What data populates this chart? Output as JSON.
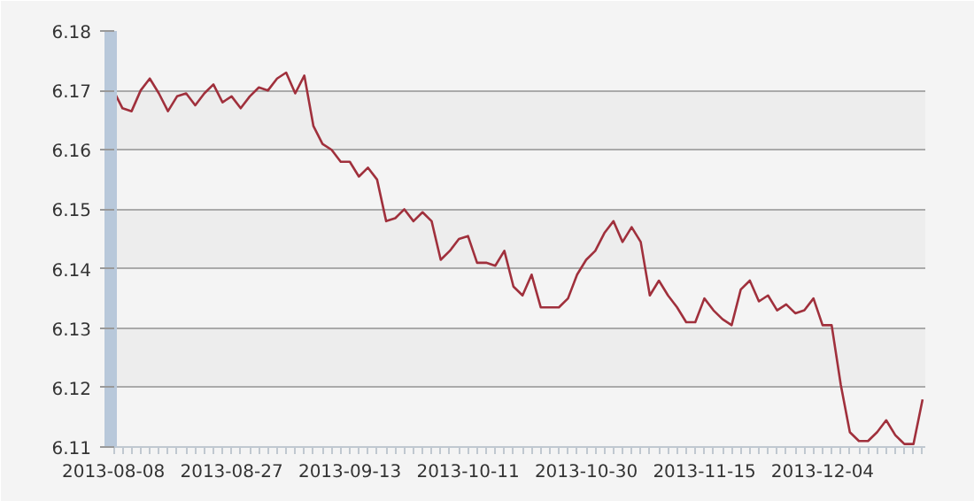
{
  "chart_data": {
    "type": "line",
    "categories": [
      "2013-08-08",
      null,
      null,
      null,
      null,
      null,
      null,
      null,
      null,
      null,
      null,
      null,
      null,
      "2013-08-27",
      null,
      null,
      null,
      null,
      null,
      null,
      null,
      null,
      null,
      null,
      null,
      null,
      "2013-09-13",
      null,
      null,
      null,
      null,
      null,
      null,
      null,
      null,
      null,
      null,
      null,
      null,
      "2013-10-11",
      null,
      null,
      null,
      null,
      null,
      null,
      null,
      null,
      null,
      null,
      null,
      null,
      "2013-10-30",
      null,
      null,
      null,
      null,
      null,
      null,
      null,
      null,
      null,
      null,
      null,
      null,
      "2013-11-15",
      null,
      null,
      null,
      null,
      null,
      null,
      null,
      null,
      null,
      null,
      null,
      null,
      "2013-12-04",
      null,
      null,
      null,
      null,
      null,
      null,
      null,
      null,
      null,
      null,
      null
    ],
    "series": [
      {
        "color": "#a0303c",
        "values": [
          6.17,
          6.167,
          6.1665,
          6.17,
          6.172,
          6.1695,
          6.1665,
          6.169,
          6.1695,
          6.1675,
          6.1695,
          6.171,
          6.168,
          6.169,
          6.167,
          6.169,
          6.1705,
          6.17,
          6.172,
          6.173,
          6.1695,
          6.1725,
          6.164,
          6.161,
          6.16,
          6.158,
          6.158,
          6.1555,
          6.157,
          6.155,
          6.148,
          6.1485,
          6.15,
          6.148,
          6.1495,
          6.148,
          6.1415,
          6.143,
          6.145,
          6.1455,
          6.141,
          6.141,
          6.1405,
          6.143,
          6.137,
          6.1355,
          6.139,
          6.1335,
          6.1335,
          6.1335,
          6.135,
          6.139,
          6.1415,
          6.143,
          6.146,
          6.148,
          6.1445,
          6.147,
          6.1445,
          6.1355,
          6.138,
          6.1355,
          6.1335,
          6.131,
          6.131,
          6.135,
          6.133,
          6.1315,
          6.1305,
          6.1365,
          6.138,
          6.1345,
          6.1355,
          6.133,
          6.134,
          6.1325,
          6.133,
          6.135,
          6.1305,
          6.1305,
          6.1205,
          6.1125,
          6.111,
          6.111,
          6.1125,
          6.1145,
          6.112,
          6.1105,
          6.1105,
          6.118
        ]
      }
    ],
    "ylim": [
      6.11,
      6.18
    ],
    "yticks": [
      6.11,
      6.12,
      6.13,
      6.14,
      6.15,
      6.16,
      6.17,
      6.18
    ],
    "grid": "y",
    "marker": "none",
    "line_style": "solid"
  }
}
